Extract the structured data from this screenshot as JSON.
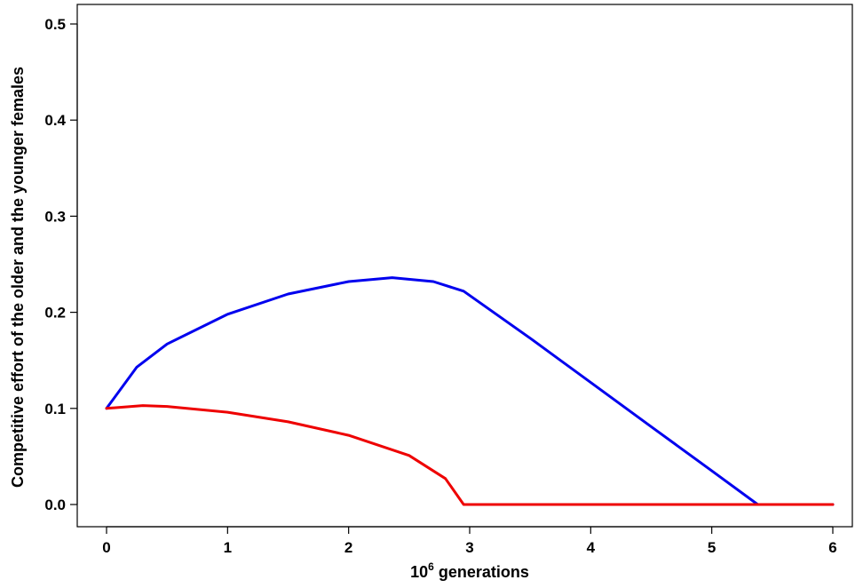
{
  "chart_data": {
    "type": "line",
    "xlabel": "generations",
    "xlabel_prefix": "10",
    "xlabel_superscript": "6",
    "ylabel": "Competitive effort of the older and the younger females",
    "xlim": [
      0,
      6
    ],
    "ylim": [
      0,
      0.5
    ],
    "x_ticks": [
      "0",
      "1",
      "2",
      "3",
      "4",
      "5",
      "6"
    ],
    "y_ticks": [
      "0.0",
      "0.1",
      "0.2",
      "0.3",
      "0.4",
      "0.5"
    ],
    "grid": false,
    "legend": "none",
    "series": [
      {
        "color": "#0000ee",
        "x": [
          0,
          0.25,
          0.5,
          1.0,
          1.5,
          2.0,
          2.36,
          2.7,
          2.95,
          3.5,
          4.0,
          4.5,
          5.0,
          5.38,
          6.0
        ],
        "y": [
          0.1,
          0.143,
          0.167,
          0.198,
          0.219,
          0.232,
          0.236,
          0.232,
          0.222,
          0.173,
          0.127,
          0.081,
          0.035,
          0.0,
          0.0
        ]
      },
      {
        "color": "#ee0000",
        "x": [
          0,
          0.3,
          0.5,
          1.0,
          1.5,
          2.0,
          2.5,
          2.8,
          2.95,
          3.5,
          4.0,
          5.0,
          6.0
        ],
        "y": [
          0.1,
          0.103,
          0.102,
          0.096,
          0.086,
          0.072,
          0.051,
          0.027,
          0.0,
          0.0,
          0.0,
          0.0,
          0.0
        ]
      }
    ]
  }
}
